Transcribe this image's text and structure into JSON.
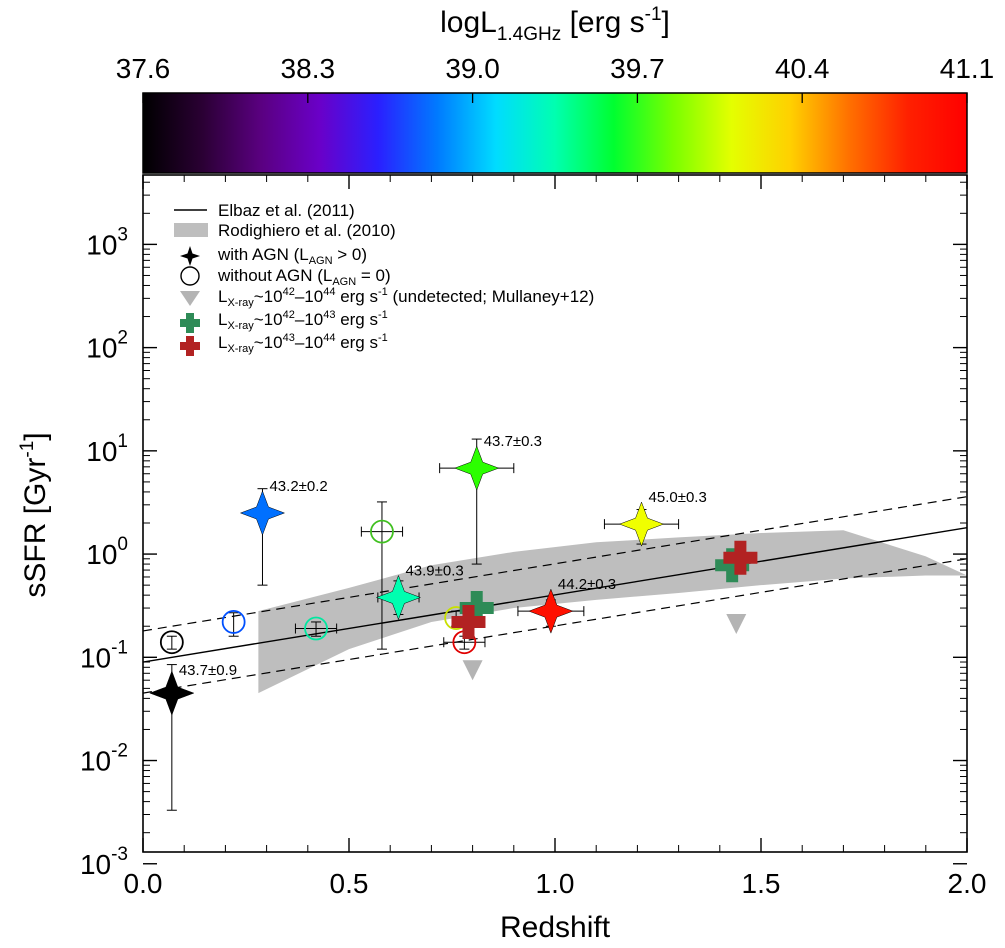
{
  "chart_data": {
    "type": "scatter",
    "xlabel": "Redshift",
    "ylabel": "sSFR [Gyr",
    "ylabel_sup": "-1",
    "ylabel_end": "]",
    "xlim": [
      0.0,
      2.0
    ],
    "ylim": [
      0.001,
      5000
    ],
    "y_scale": "log",
    "x_ticks": [
      "0.0",
      "0.5",
      "1.0",
      "1.5",
      "2.0"
    ],
    "y_ticks": [
      {
        "base": "10",
        "exp": "-3"
      },
      {
        "base": "10",
        "exp": "-2"
      },
      {
        "base": "10",
        "exp": "-1"
      },
      {
        "base": "10",
        "exp": "0"
      },
      {
        "base": "10",
        "exp": "1"
      },
      {
        "base": "10",
        "exp": "2"
      },
      {
        "base": "10",
        "exp": "3"
      }
    ],
    "colorbar": {
      "label_pre": "logL",
      "label_sub": "1.4GHz",
      "label_post": " [erg s",
      "label_sup": "-1",
      "label_end": "]",
      "range": [
        37.6,
        41.1
      ],
      "ticks": [
        "37.6",
        "38.3",
        "39.0",
        "39.7",
        "40.4",
        "41.1"
      ],
      "colors": [
        "#000000",
        "#2a0033",
        "#5a0080",
        "#6a00c8",
        "#2a20ff",
        "#007aff",
        "#00dcff",
        "#00ffb0",
        "#00ff30",
        "#78ff00",
        "#e4ff00",
        "#ffd000",
        "#ff7000",
        "#ff2000",
        "#ff0000"
      ]
    },
    "legend": {
      "elbaz": "Elbaz et al. (2011)",
      "rodighiero": "Rodighiero et al. (2010)",
      "with_agn_pre": "with AGN (L",
      "with_agn_sub": "AGN",
      "with_agn_post": " > 0)",
      "without_agn_pre": "without AGN (L",
      "without_agn_sub": "AGN",
      "without_agn_post": " = 0)",
      "mullaney_pre": "L",
      "mullaney_sub": "X-ray",
      "mullaney_mid1": "~10",
      "mullaney_sup1": "42",
      "mullaney_mid2": "–10",
      "mullaney_sup2": "44",
      "mullaney_post": " erg s",
      "mullaney_sup3": "-1",
      "mullaney_end": " (undetected; Mullaney+12)",
      "green_pre": "L",
      "green_sub": "X-ray",
      "green_mid1": "~10",
      "green_sup1": "42",
      "green_mid2": "–10",
      "green_sup2": "43",
      "green_post": " erg s",
      "green_sup3": "-1",
      "red_pre": "L",
      "red_sub": "X-ray",
      "red_mid1": "~10",
      "red_sup1": "43",
      "red_mid2": "–10",
      "red_sup2": "44",
      "red_post": " erg s",
      "red_sup3": "-1"
    },
    "colors": {
      "band": "#bebebe",
      "triangle": "#b4b4b4",
      "green_cross": "#2e8b57",
      "red_cross": "#b22222"
    },
    "elbaz_line": {
      "x": [
        0.0,
        2.0
      ],
      "y": [
        0.09,
        1.8
      ]
    },
    "elbaz_upper": {
      "x": [
        0.0,
        2.0
      ],
      "y": [
        0.18,
        3.6
      ]
    },
    "elbaz_lower": {
      "x": [
        0.0,
        2.0
      ],
      "y": [
        0.045,
        0.9
      ]
    },
    "rodighiero_band": {
      "x": [
        0.28,
        0.5,
        0.7,
        0.9,
        1.1,
        1.3,
        1.5,
        1.7,
        1.9,
        2.0,
        1.9,
        1.7,
        1.5,
        1.3,
        1.1,
        0.9,
        0.7,
        0.5,
        0.28
      ],
      "y": [
        0.28,
        0.47,
        0.78,
        1.05,
        1.3,
        1.45,
        1.6,
        1.7,
        0.95,
        0.62,
        0.62,
        0.58,
        0.5,
        0.42,
        0.36,
        0.3,
        0.22,
        0.12,
        0.045
      ]
    },
    "with_agn": [
      {
        "z": 0.07,
        "ssfr": 0.045,
        "z_err": 0.02,
        "ylo": 0.0033,
        "yhi": 0.085,
        "color": "#000000",
        "label": "43.7±0.9"
      },
      {
        "z": 0.29,
        "ssfr": 2.5,
        "z_err": 0.0,
        "ylo": 0.5,
        "yhi": 4.3,
        "color": "#0070ff",
        "label": "43.2±0.2"
      },
      {
        "z": 0.62,
        "ssfr": 0.38,
        "z_err": 0.05,
        "ylo": 0.26,
        "yhi": 0.55,
        "color": "#00ffb0",
        "label": "43.9±0.3"
      },
      {
        "z": 0.81,
        "ssfr": 6.8,
        "z_err": 0.09,
        "ylo": 0.8,
        "yhi": 13.0,
        "color": "#2cff00",
        "label": "43.7±0.3"
      },
      {
        "z": 0.99,
        "ssfr": 0.28,
        "z_err": 0.08,
        "ylo": 0.2,
        "yhi": 0.36,
        "color": "#ff1000",
        "label": "44.2±0.3"
      },
      {
        "z": 1.21,
        "ssfr": 1.95,
        "z_err": 0.09,
        "ylo": 1.25,
        "yhi": 2.7,
        "color": "#f0ff00",
        "label": "45.0±0.3"
      }
    ],
    "without_agn": [
      {
        "z": 0.07,
        "ssfr": 0.14,
        "z_err": 0.0,
        "ylo": 0.12,
        "yhi": 0.16,
        "color": "#000000"
      },
      {
        "z": 0.22,
        "ssfr": 0.22,
        "z_err": 0.0,
        "ylo": 0.16,
        "yhi": 0.27,
        "color": "#0050ff"
      },
      {
        "z": 0.42,
        "ssfr": 0.19,
        "z_err": 0.05,
        "ylo": 0.16,
        "yhi": 0.22,
        "color": "#00e8a0"
      },
      {
        "z": 0.58,
        "ssfr": 1.65,
        "z_err": 0.05,
        "ylo": 0.12,
        "yhi": 3.2,
        "color": "#40c020"
      },
      {
        "z": 0.76,
        "ssfr": 0.24,
        "z_err": 0.0,
        "ylo": 0.2,
        "yhi": 0.28,
        "color": "#c8e000"
      },
      {
        "z": 0.78,
        "ssfr": 0.14,
        "z_err": 0.05,
        "ylo": 0.12,
        "yhi": 0.16,
        "color": "#e00000"
      }
    ],
    "triangles": [
      {
        "z": 0.8,
        "ssfr": 0.075
      },
      {
        "z": 1.44,
        "ssfr": 0.21
      }
    ],
    "green_crosses": [
      {
        "z": 0.81,
        "ssfr": 0.3
      },
      {
        "z": 1.43,
        "ssfr": 0.78
      }
    ],
    "red_crosses": [
      {
        "z": 0.79,
        "ssfr": 0.22
      },
      {
        "z": 1.45,
        "ssfr": 0.92
      }
    ]
  }
}
